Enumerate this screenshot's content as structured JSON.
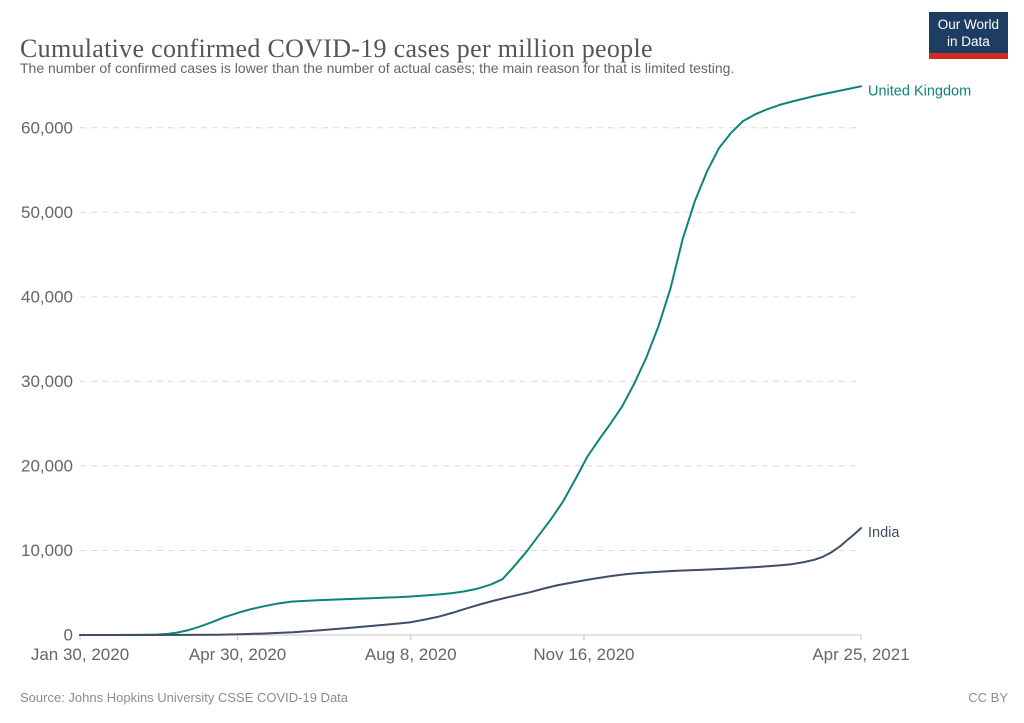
{
  "logo": {
    "line1": "Our World",
    "line2": "in Data",
    "bg_color": "#1d3d63",
    "bar_color": "#ce2e22"
  },
  "footer": {
    "source": "Source: Johns Hopkins University CSSE COVID-19 Data",
    "license": "CC BY"
  },
  "chart_data": {
    "type": "line",
    "title": "Cumulative confirmed COVID-19 cases per million people",
    "subtitle": "The number of confirmed cases is lower than the number of actual cases; the main reason for that is limited testing.",
    "grid": true,
    "legend_position": "end-of-line",
    "x_axis": {
      "type": "date",
      "range_days": [
        0,
        451
      ],
      "ticks": [
        {
          "day": 0,
          "label": "Jan 30, 2020"
        },
        {
          "day": 91,
          "label": "Apr 30, 2020"
        },
        {
          "day": 191,
          "label": "Aug 8, 2020"
        },
        {
          "day": 291,
          "label": "Nov 16, 2020"
        },
        {
          "day": 451,
          "label": "Apr 25, 2021"
        }
      ]
    },
    "y_axis": {
      "range": [
        0,
        65000
      ],
      "gridlines": true,
      "ticks": [
        {
          "value": 0,
          "label": "0"
        },
        {
          "value": 10000,
          "label": "10,000"
        },
        {
          "value": 20000,
          "label": "20,000"
        },
        {
          "value": 30000,
          "label": "30,000"
        },
        {
          "value": 40000,
          "label": "40,000"
        },
        {
          "value": 50000,
          "label": "50,000"
        },
        {
          "value": 60000,
          "label": "60,000"
        }
      ]
    },
    "series": [
      {
        "name": "United Kingdom",
        "color": "#0e8478",
        "points": [
          [
            0,
            0
          ],
          [
            20,
            2
          ],
          [
            30,
            10
          ],
          [
            40,
            35
          ],
          [
            45,
            60
          ],
          [
            50,
            120
          ],
          [
            56,
            280
          ],
          [
            62,
            550
          ],
          [
            69,
            980
          ],
          [
            76,
            1500
          ],
          [
            83,
            2080
          ],
          [
            91,
            2620
          ],
          [
            98,
            3020
          ],
          [
            106,
            3400
          ],
          [
            114,
            3720
          ],
          [
            122,
            3950
          ],
          [
            137,
            4110
          ],
          [
            152,
            4230
          ],
          [
            168,
            4350
          ],
          [
            183,
            4470
          ],
          [
            191,
            4560
          ],
          [
            199,
            4670
          ],
          [
            207,
            4790
          ],
          [
            215,
            4960
          ],
          [
            222,
            5160
          ],
          [
            229,
            5450
          ],
          [
            237,
            5950
          ],
          [
            244,
            6600
          ],
          [
            251,
            8200
          ],
          [
            258,
            9900
          ],
          [
            265,
            11800
          ],
          [
            272,
            13700
          ],
          [
            279,
            15800
          ],
          [
            286,
            18400
          ],
          [
            293,
            21100
          ],
          [
            300,
            23200
          ],
          [
            306,
            24900
          ],
          [
            313,
            27000
          ],
          [
            320,
            29700
          ],
          [
            327,
            32800
          ],
          [
            334,
            36500
          ],
          [
            341,
            41000
          ],
          [
            348,
            46800
          ],
          [
            355,
            51300
          ],
          [
            362,
            54800
          ],
          [
            369,
            57600
          ],
          [
            376,
            59400
          ],
          [
            383,
            60800
          ],
          [
            390,
            61600
          ],
          [
            397,
            62200
          ],
          [
            404,
            62700
          ],
          [
            411,
            63100
          ],
          [
            418,
            63450
          ],
          [
            425,
            63800
          ],
          [
            432,
            64100
          ],
          [
            439,
            64400
          ],
          [
            445,
            64650
          ],
          [
            451,
            64900
          ]
        ]
      },
      {
        "name": "India",
        "color": "#3d4e66",
        "points": [
          [
            0,
            0
          ],
          [
            40,
            1
          ],
          [
            60,
            10
          ],
          [
            80,
            40
          ],
          [
            92,
            90
          ],
          [
            105,
            170
          ],
          [
            123,
            330
          ],
          [
            138,
            540
          ],
          [
            153,
            800
          ],
          [
            168,
            1060
          ],
          [
            184,
            1360
          ],
          [
            191,
            1510
          ],
          [
            199,
            1820
          ],
          [
            207,
            2160
          ],
          [
            215,
            2620
          ],
          [
            222,
            3060
          ],
          [
            230,
            3560
          ],
          [
            238,
            4010
          ],
          [
            245,
            4360
          ],
          [
            252,
            4700
          ],
          [
            260,
            5060
          ],
          [
            268,
            5500
          ],
          [
            276,
            5900
          ],
          [
            284,
            6200
          ],
          [
            291,
            6460
          ],
          [
            298,
            6700
          ],
          [
            306,
            6950
          ],
          [
            313,
            7150
          ],
          [
            321,
            7300
          ],
          [
            329,
            7410
          ],
          [
            337,
            7510
          ],
          [
            345,
            7600
          ],
          [
            352,
            7660
          ],
          [
            360,
            7730
          ],
          [
            368,
            7800
          ],
          [
            376,
            7870
          ],
          [
            383,
            7950
          ],
          [
            390,
            8030
          ],
          [
            396,
            8110
          ],
          [
            403,
            8220
          ],
          [
            411,
            8380
          ],
          [
            418,
            8620
          ],
          [
            424,
            8900
          ],
          [
            429,
            9250
          ],
          [
            434,
            9800
          ],
          [
            439,
            10500
          ],
          [
            443,
            11200
          ],
          [
            447,
            11900
          ],
          [
            451,
            12650
          ]
        ]
      }
    ]
  }
}
